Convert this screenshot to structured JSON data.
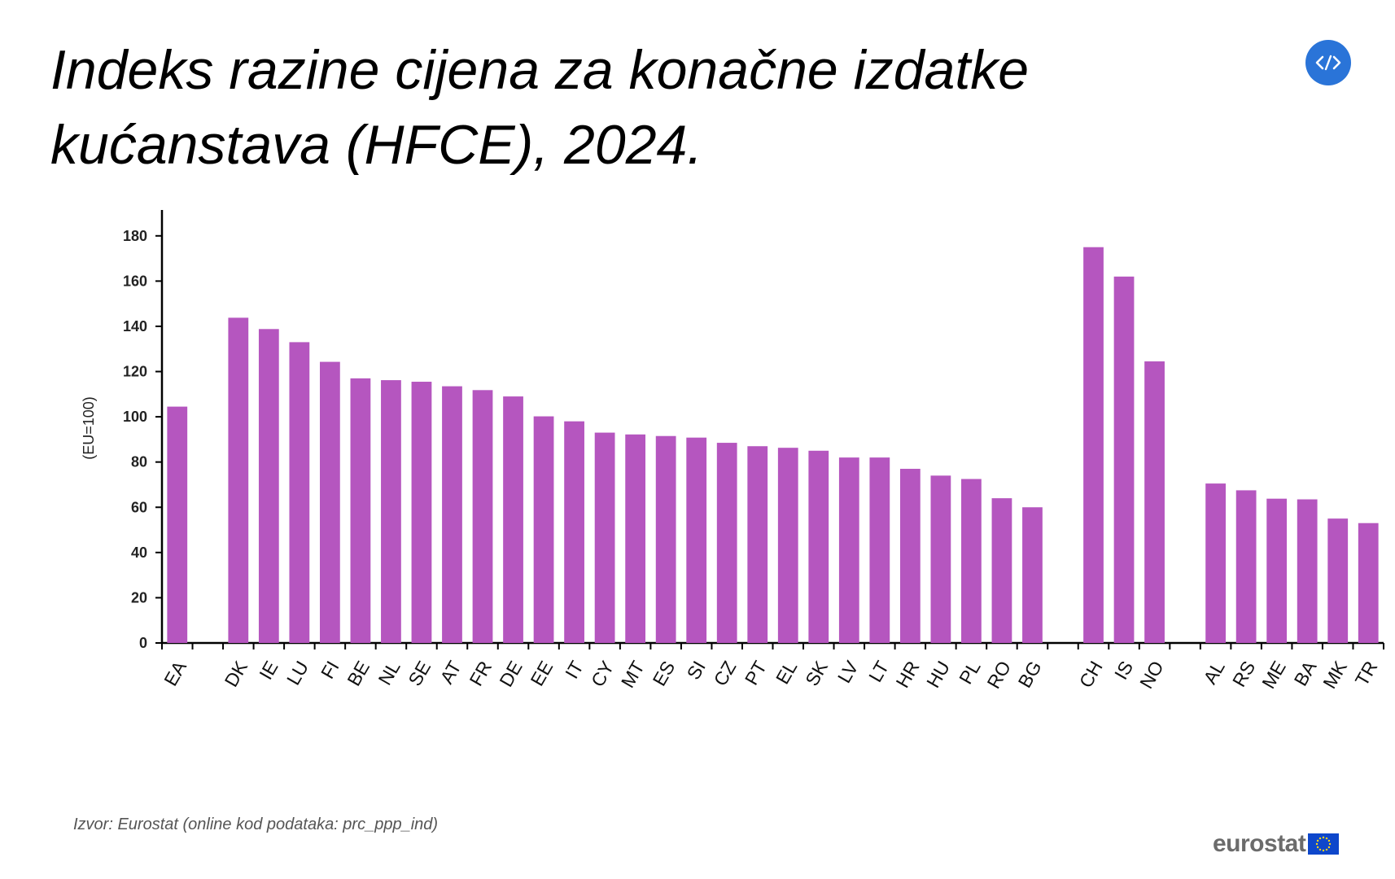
{
  "title": "Indeks razine cijena za konačne izdatke kućanstava (HFCE), 2024.",
  "source": "Izvor: Eurostat (online kod podataka: prc_ppp_ind)",
  "logo_text": "eurostat",
  "embed_icon": "code-embed-icon",
  "colors": {
    "bar": "#b556bf",
    "accent": "#2a74d8",
    "logo_blue": "#0e47cb",
    "logo_star": "#ffd617"
  },
  "chart_data": {
    "type": "bar",
    "ylabel": "(EU=100)",
    "ylim": [
      0,
      190
    ],
    "yticks": [
      0,
      20,
      40,
      60,
      80,
      100,
      120,
      140,
      160,
      180
    ],
    "grid": false,
    "categories": [
      "EA",
      "",
      "DK",
      "IE",
      "LU",
      "FI",
      "BE",
      "NL",
      "SE",
      "AT",
      "FR",
      "DE",
      "EE",
      "IT",
      "CY",
      "MT",
      "ES",
      "SI",
      "CZ",
      "PT",
      "EL",
      "SK",
      "LV",
      "LT",
      "HR",
      "HU",
      "PL",
      "RO",
      "BG",
      "",
      "CH",
      "IS",
      "NO",
      "",
      "AL",
      "RS",
      "ME",
      "BA",
      "MK",
      "TR"
    ],
    "values": [
      104.5,
      null,
      143.8,
      138.8,
      133,
      124.3,
      117,
      116.2,
      115.5,
      113.5,
      111.8,
      109,
      100.2,
      98,
      93,
      92.2,
      91.5,
      90.8,
      88.5,
      87,
      86.3,
      85,
      82,
      82,
      77,
      74,
      72.5,
      64,
      60,
      null,
      175,
      162,
      124.5,
      null,
      70.5,
      67.5,
      63.8,
      63.5,
      55,
      53
    ]
  }
}
